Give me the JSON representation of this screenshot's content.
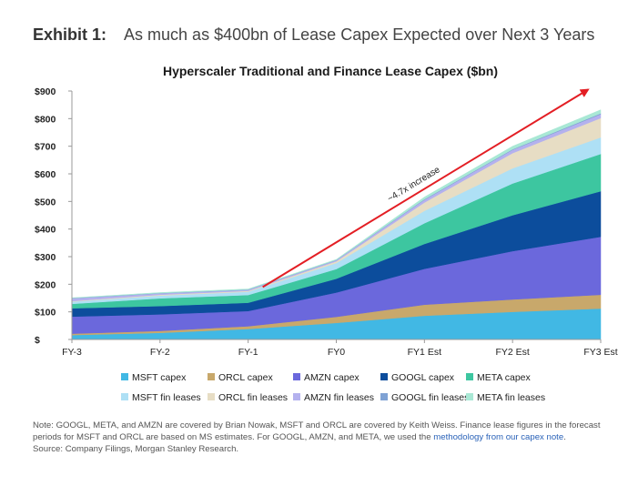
{
  "exhibit": {
    "label": "Exhibit 1:",
    "title": "As much as $400bn of Lease Capex Expected over Next 3 Years"
  },
  "chart_data": {
    "type": "area",
    "stacked": true,
    "title": "Hyperscaler Traditional and Finance Lease Capex ($bn)",
    "x": [
      "FY-3",
      "FY-2",
      "FY-1",
      "FY0",
      "FY1 Est",
      "FY2 Est",
      "FY3 Est"
    ],
    "ylim": [
      0,
      900
    ],
    "yticks": [
      0,
      100,
      200,
      300,
      400,
      500,
      600,
      700,
      800,
      900
    ],
    "ytick_labels": [
      "$",
      "$100",
      "$200",
      "$300",
      "$400",
      "$500",
      "$600",
      "$700",
      "$800",
      "$900"
    ],
    "grid": false,
    "legend_position": "bottom",
    "series": [
      {
        "name": "MSFT capex",
        "color": "#41b8e4",
        "values": [
          16,
          24,
          38,
          60,
          86,
          100,
          112
        ]
      },
      {
        "name": "ORCL capex",
        "color": "#c8a86b",
        "values": [
          5,
          7,
          10,
          22,
          40,
          45,
          50
        ]
      },
      {
        "name": "AMZN capex",
        "color": "#6b68dc",
        "values": [
          62,
          60,
          55,
          88,
          130,
          175,
          210
        ]
      },
      {
        "name": "GOOGL capex",
        "color": "#0c4d9c",
        "values": [
          30,
          30,
          30,
          50,
          90,
          130,
          165
        ]
      },
      {
        "name": "META capex",
        "color": "#3dc6a0",
        "values": [
          16,
          28,
          28,
          35,
          75,
          115,
          135
        ]
      },
      {
        "name": "MSFT fin leases",
        "color": "#aee0f5",
        "values": [
          8,
          10,
          12,
          22,
          45,
          55,
          60
        ]
      },
      {
        "name": "ORCL fin leases",
        "color": "#e7ddc4",
        "values": [
          2,
          3,
          3,
          6,
          30,
          55,
          70
        ]
      },
      {
        "name": "AMZN fin leases",
        "color": "#b4b1ee",
        "values": [
          10,
          5,
          4,
          4,
          10,
          12,
          14
        ]
      },
      {
        "name": "GOOGL fin leases",
        "color": "#7fa2d4",
        "values": [
          1,
          1,
          1,
          1,
          2,
          2,
          3
        ]
      },
      {
        "name": "META fin leases",
        "color": "#a9e8d5",
        "values": [
          1,
          2,
          2,
          2,
          8,
          11,
          13
        ]
      }
    ],
    "annotation": {
      "text": "~4.7x increase",
      "color": "#e31e24",
      "from": {
        "x": "FY-1",
        "y": 190
      },
      "to": {
        "x": "FY3 Est",
        "y": 905
      }
    }
  },
  "notes": {
    "line1": "Note: GOOGL, META, and AMZN are covered by Brian Nowak, MSFT and ORCL are covered by Keith Weiss. Finance lease figures in the forecast periods for MSFT and ORCL are based on MS estimates. For GOOGL, AMZN, and META, we used the ",
    "link": "methodology from our capex note",
    "line1_end": ".",
    "source": "Source: Company Filings, Morgan Stanley Research."
  }
}
